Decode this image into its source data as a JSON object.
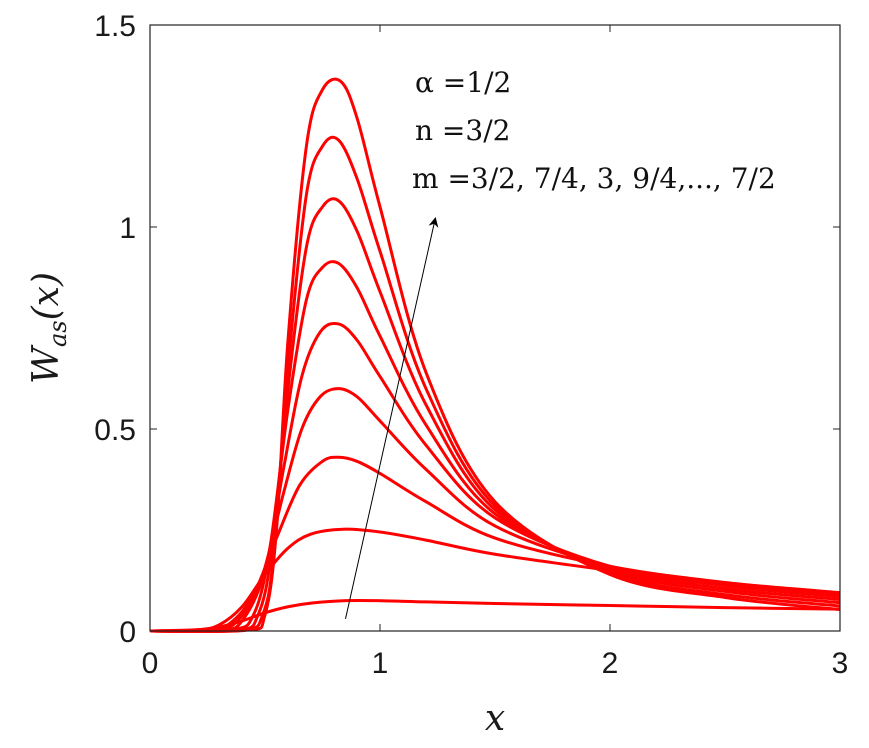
{
  "chart_data": {
    "type": "line",
    "xlabel": "x",
    "ylabel": "W_as(x)",
    "ylabel_parts": {
      "main": "W",
      "sub": "as",
      "arg": "(x)"
    },
    "xlim": [
      0,
      3
    ],
    "ylim": [
      0,
      1.5
    ],
    "xticks": [
      0,
      1,
      2,
      3
    ],
    "xtick_labels": [
      "0",
      "1",
      "2",
      "3"
    ],
    "yticks": [
      0,
      0.5,
      1,
      1.5
    ],
    "ytick_labels": [
      "0",
      "0.5",
      "1",
      "1.5"
    ],
    "grid": false,
    "line_color": "#ff0000",
    "annotations": [
      {
        "label": "α =1/2"
      },
      {
        "label": "n =3/2"
      },
      {
        "label": "m =3/2, 7/4, 3, 9/4,..., 7/2"
      }
    ],
    "arrow": {
      "from": [
        0.85,
        0.03
      ],
      "to": [
        1.24,
        1.02
      ]
    },
    "series": [
      {
        "x": [
          0,
          0.2,
          0.3,
          0.4,
          0.5,
          0.6,
          0.7,
          0.84,
          1.0,
          1.2,
          1.5,
          2.0,
          2.5,
          3.0
        ],
        "y": [
          0,
          0.003,
          0.01,
          0.025,
          0.045,
          0.06,
          0.069,
          0.075,
          0.075,
          0.072,
          0.068,
          0.063,
          0.058,
          0.054
        ]
      },
      {
        "x": [
          0,
          0.2,
          0.3,
          0.4,
          0.5,
          0.6,
          0.7,
          0.84,
          1.0,
          1.2,
          1.5,
          2.0,
          2.5,
          3.0
        ],
        "y": [
          0,
          0.002,
          0.015,
          0.06,
          0.14,
          0.205,
          0.24,
          0.252,
          0.245,
          0.225,
          0.19,
          0.15,
          0.115,
          0.09
        ]
      },
      {
        "x": [
          0,
          0.25,
          0.35,
          0.45,
          0.55,
          0.65,
          0.75,
          0.82,
          0.9,
          1.0,
          1.2,
          1.5,
          2.0,
          2.5,
          3.0
        ],
        "y": [
          0,
          0.003,
          0.02,
          0.09,
          0.23,
          0.36,
          0.42,
          0.43,
          0.42,
          0.39,
          0.32,
          0.23,
          0.16,
          0.12,
          0.095
        ]
      },
      {
        "x": [
          0,
          0.28,
          0.38,
          0.48,
          0.58,
          0.66,
          0.74,
          0.82,
          0.9,
          1.0,
          1.2,
          1.5,
          2.0,
          2.5,
          3.0
        ],
        "y": [
          0,
          0.003,
          0.025,
          0.12,
          0.34,
          0.5,
          0.58,
          0.6,
          0.58,
          0.52,
          0.4,
          0.26,
          0.16,
          0.118,
          0.09
        ]
      },
      {
        "x": [
          0,
          0.3,
          0.4,
          0.5,
          0.58,
          0.66,
          0.74,
          0.82,
          0.9,
          1.0,
          1.2,
          1.5,
          2.0,
          2.5,
          3.0
        ],
        "y": [
          0,
          0.002,
          0.025,
          0.15,
          0.4,
          0.63,
          0.74,
          0.76,
          0.72,
          0.63,
          0.46,
          0.28,
          0.16,
          0.112,
          0.085
        ]
      },
      {
        "x": [
          0,
          0.35,
          0.45,
          0.52,
          0.6,
          0.68,
          0.75,
          0.82,
          0.9,
          1.0,
          1.2,
          1.5,
          2.0,
          2.5,
          3.0
        ],
        "y": [
          0,
          0.003,
          0.04,
          0.2,
          0.55,
          0.82,
          0.9,
          0.91,
          0.85,
          0.73,
          0.51,
          0.29,
          0.155,
          0.105,
          0.078
        ]
      },
      {
        "x": [
          0,
          0.38,
          0.47,
          0.53,
          0.6,
          0.68,
          0.75,
          0.82,
          0.9,
          1.0,
          1.2,
          1.5,
          2.0,
          2.5,
          3.0
        ],
        "y": [
          0,
          0.002,
          0.04,
          0.2,
          0.6,
          0.95,
          1.05,
          1.065,
          0.99,
          0.84,
          0.56,
          0.3,
          0.15,
          0.098,
          0.07
        ]
      },
      {
        "x": [
          0,
          0.4,
          0.49,
          0.54,
          0.6,
          0.68,
          0.75,
          0.82,
          0.9,
          1.0,
          1.2,
          1.5,
          2.0,
          2.5,
          3.0
        ],
        "y": [
          0,
          0.002,
          0.04,
          0.2,
          0.65,
          1.08,
          1.2,
          1.215,
          1.12,
          0.94,
          0.6,
          0.31,
          0.145,
          0.09,
          0.062
        ]
      },
      {
        "x": [
          0,
          0.42,
          0.5,
          0.55,
          0.6,
          0.68,
          0.75,
          0.83,
          0.9,
          1.0,
          1.2,
          1.5,
          2.0,
          2.5,
          3.0
        ],
        "y": [
          0,
          0.002,
          0.04,
          0.25,
          0.72,
          1.2,
          1.34,
          1.36,
          1.27,
          1.05,
          0.64,
          0.32,
          0.14,
          0.083,
          0.053
        ]
      }
    ]
  }
}
